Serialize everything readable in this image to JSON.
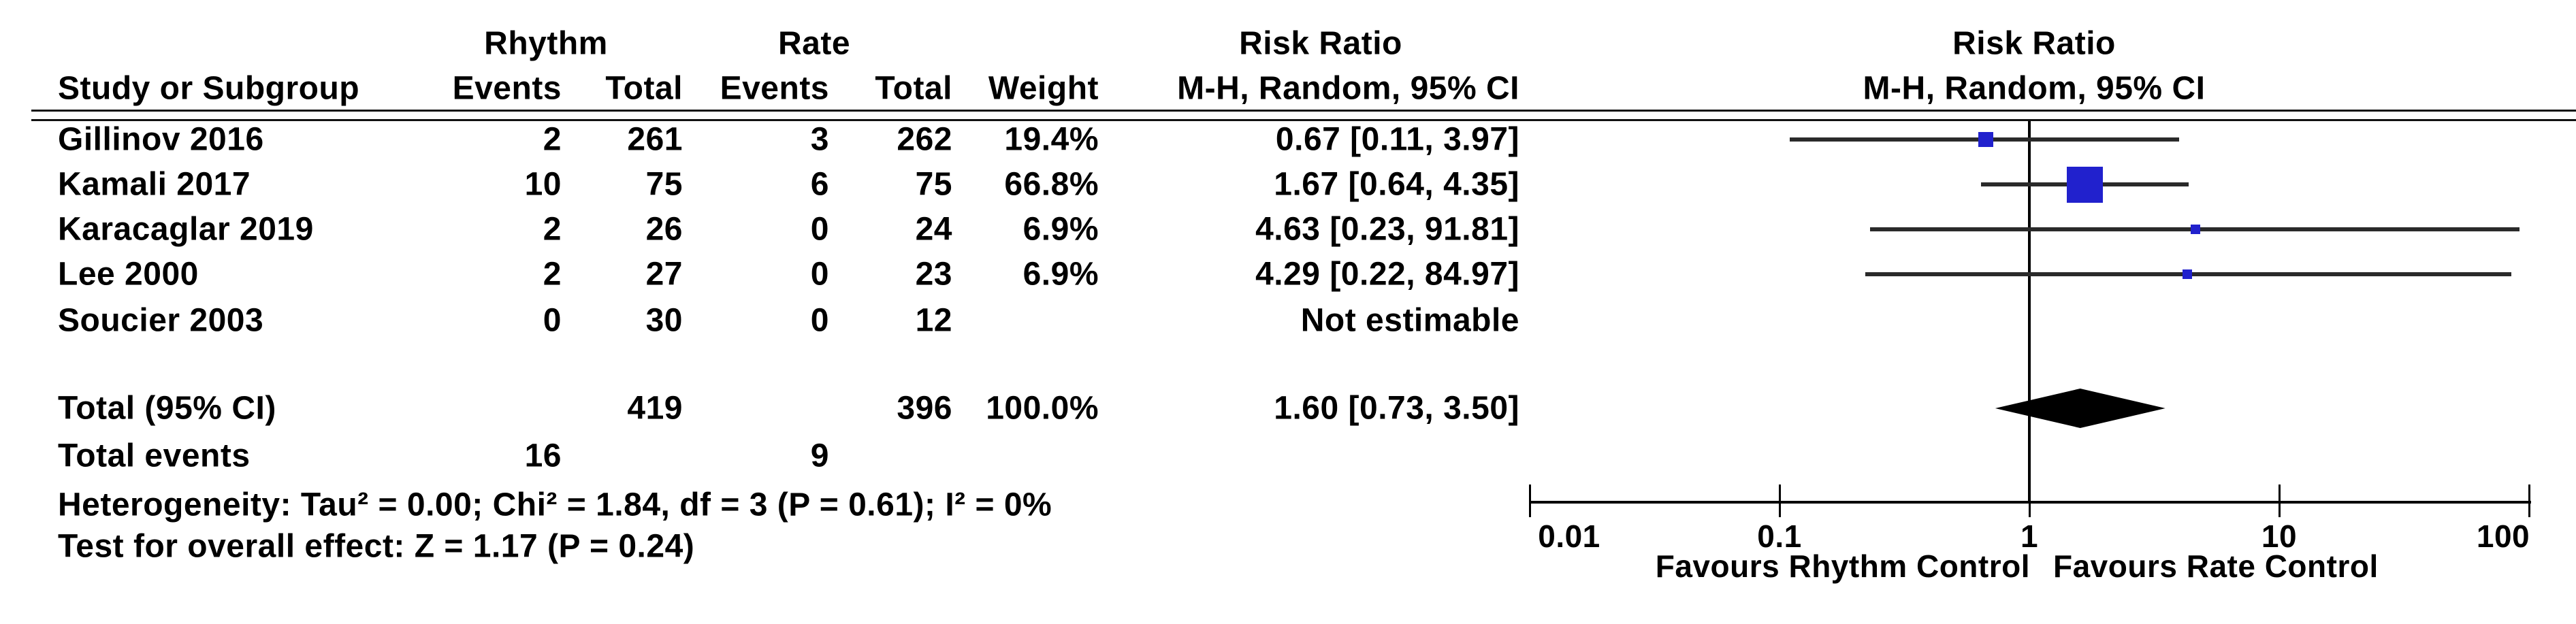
{
  "header": {
    "group_rhythm": "Rhythm",
    "group_rate": "Rate",
    "risk_ratio": "Risk Ratio",
    "study_col": "Study or Subgroup",
    "events_col": "Events",
    "total_col": "Total",
    "weight_col": "Weight",
    "mh_col": "M-H, Random, 95% CI"
  },
  "total_row": {
    "label": "Total (95% CI)",
    "rhythm_total": "419",
    "rate_total": "396",
    "weight": "100.0%",
    "rr_text": "1.60 [0.73, 3.50]"
  },
  "total_events": {
    "label": "Total events",
    "rhythm": "16",
    "rate": "9"
  },
  "footer": {
    "heterogeneity": "Heterogeneity: Tau² = 0.00; Chi² = 1.84, df = 3 (P = 0.61); I² = 0%",
    "overall_effect": "Test for overall effect: Z = 1.17 (P = 0.24)"
  },
  "axis": {
    "favours_left": "Favours Rhythm Control",
    "favours_right": "Favours Rate Control"
  },
  "colors": {
    "marker_blue": "#2121cd",
    "ci_line": "#2a2a2a",
    "diamond_black": "#000000"
  },
  "chart_data": {
    "type": "forest",
    "effect_measure": "Risk Ratio",
    "method": "M-H, Random, 95% CI",
    "x_scale": "log",
    "x_ticks": [
      0.01,
      0.1,
      1,
      10,
      100
    ],
    "x_tick_labels": [
      "0.01",
      "0.1",
      "1",
      "10",
      "100"
    ],
    "favours": [
      "Favours Rhythm Control",
      "Favours Rate Control"
    ],
    "studies": [
      {
        "name": "Gillinov 2016",
        "rhythm_events": 2,
        "rhythm_total": 261,
        "rate_events": 3,
        "rate_total": 262,
        "weight": "19.4%",
        "weight_value": 19.4,
        "rr": 0.67,
        "ci_low": 0.11,
        "ci_high": 3.97,
        "rr_text": "0.67 [0.11, 3.97]"
      },
      {
        "name": "Kamali 2017",
        "rhythm_events": 10,
        "rhythm_total": 75,
        "rate_events": 6,
        "rate_total": 75,
        "weight": "66.8%",
        "weight_value": 66.8,
        "rr": 1.67,
        "ci_low": 0.64,
        "ci_high": 4.35,
        "rr_text": "1.67 [0.64, 4.35]"
      },
      {
        "name": "Karacaglar 2019",
        "rhythm_events": 2,
        "rhythm_total": 26,
        "rate_events": 0,
        "rate_total": 24,
        "weight": "6.9%",
        "weight_value": 6.9,
        "rr": 4.63,
        "ci_low": 0.23,
        "ci_high": 91.81,
        "rr_text": "4.63 [0.23, 91.81]"
      },
      {
        "name": "Lee 2000",
        "rhythm_events": 2,
        "rhythm_total": 27,
        "rate_events": 0,
        "rate_total": 23,
        "weight": "6.9%",
        "weight_value": 6.9,
        "rr": 4.29,
        "ci_low": 0.22,
        "ci_high": 84.97,
        "rr_text": "4.29 [0.22, 84.97]"
      },
      {
        "name": "Soucier 2003",
        "rhythm_events": 0,
        "rhythm_total": 30,
        "rate_events": 0,
        "rate_total": 12,
        "weight": "",
        "weight_value": null,
        "rr": null,
        "ci_low": null,
        "ci_high": null,
        "rr_text": "Not estimable"
      }
    ],
    "total": {
      "label": "Total (95% CI)",
      "rhythm_total": 419,
      "rate_total": 396,
      "weight": "100.0%",
      "rr": 1.6,
      "ci_low": 0.73,
      "ci_high": 3.5
    },
    "total_events": {
      "rhythm": 16,
      "rate": 9
    },
    "heterogeneity": "Heterogeneity: Tau² = 0.00; Chi² = 1.84, df = 3 (P = 0.61); I² = 0%",
    "overall_effect": "Test for overall effect: Z = 1.17 (P = 0.24)"
  }
}
